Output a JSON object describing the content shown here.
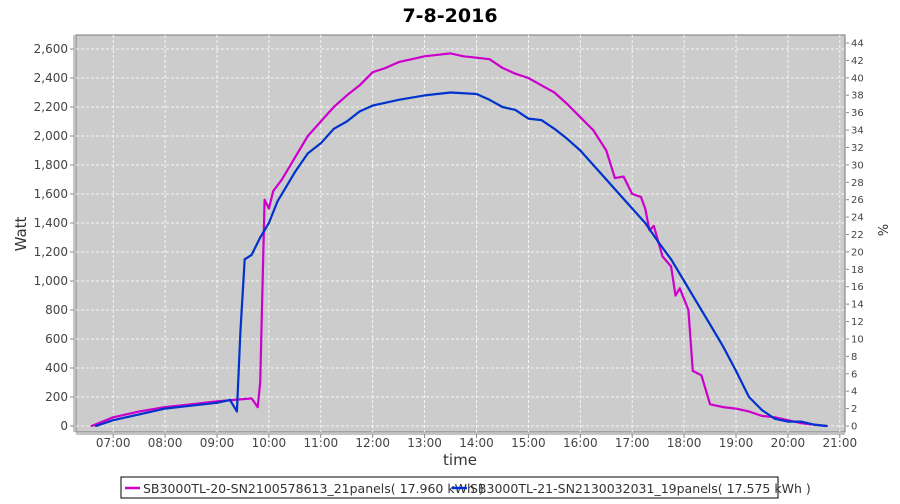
{
  "chart_data": {
    "type": "line",
    "title": "7-8-2016",
    "xlabel": "time",
    "ylabel": "Watt",
    "y2label": "%",
    "xlim": [
      "06:17",
      "21:06"
    ],
    "ylim": [
      0,
      2700
    ],
    "y2lim": [
      0,
      46
    ],
    "grid": true,
    "legend_position": "bottom",
    "x_ticks": [
      "07:00",
      "08:00",
      "09:00",
      "10:00",
      "11:00",
      "12:00",
      "13:00",
      "14:00",
      "15:00",
      "16:00",
      "17:00",
      "18:00",
      "19:00",
      "20:00",
      "21:00"
    ],
    "y_ticks": [
      "0",
      "200",
      "400",
      "600",
      "800",
      "1,000",
      "1,200",
      "1,400",
      "1,600",
      "1,800",
      "2,000",
      "2,200",
      "2,400",
      "2,600"
    ],
    "y2_ticks": [
      "0",
      "2",
      "4",
      "6",
      "8",
      "10",
      "12",
      "14",
      "16",
      "18",
      "20",
      "22",
      "24",
      "26",
      "28",
      "30",
      "32",
      "34",
      "36",
      "38",
      "40",
      "42",
      "44"
    ],
    "plot_background": "#cccccc",
    "series": [
      {
        "name": "SB3000TL-20-SN2100578613_21panels( 17.960 kWh )",
        "color": "#cc00cc",
        "x": [
          "06:35",
          "07:00",
          "07:30",
          "08:00",
          "08:30",
          "09:00",
          "09:20",
          "09:40",
          "09:47",
          "09:50",
          "09:55",
          "10:00",
          "10:05",
          "10:15",
          "10:30",
          "10:45",
          "11:00",
          "11:15",
          "11:30",
          "11:45",
          "12:00",
          "12:15",
          "12:30",
          "12:45",
          "13:00",
          "13:15",
          "13:30",
          "13:45",
          "14:00",
          "14:15",
          "14:30",
          "14:45",
          "15:00",
          "15:15",
          "15:30",
          "15:45",
          "16:00",
          "16:15",
          "16:30",
          "16:40",
          "16:50",
          "17:00",
          "17:10",
          "17:15",
          "17:20",
          "17:25",
          "17:35",
          "17:45",
          "17:50",
          "17:55",
          "18:05",
          "18:10",
          "18:20",
          "18:30",
          "18:45",
          "19:00",
          "19:15",
          "19:30",
          "19:45",
          "20:00",
          "20:15",
          "20:30",
          "20:45"
        ],
        "values": [
          0,
          60,
          100,
          130,
          150,
          170,
          180,
          190,
          130,
          300,
          1560,
          1500,
          1620,
          1700,
          1850,
          2000,
          2100,
          2200,
          2280,
          2350,
          2440,
          2470,
          2510,
          2530,
          2550,
          2560,
          2570,
          2550,
          2540,
          2530,
          2470,
          2430,
          2400,
          2350,
          2300,
          2220,
          2130,
          2040,
          1900,
          1710,
          1720,
          1600,
          1580,
          1500,
          1350,
          1380,
          1170,
          1100,
          900,
          950,
          800,
          380,
          350,
          150,
          130,
          120,
          100,
          70,
          60,
          40,
          20,
          10,
          0
        ]
      },
      {
        "name": "SB3000TL-21-SN2130032031_19panels( 17.575 kWh )",
        "color": "#0033cc",
        "x": [
          "06:40",
          "07:00",
          "07:30",
          "08:00",
          "08:30",
          "09:00",
          "09:15",
          "09:23",
          "09:27",
          "09:32",
          "09:40",
          "09:50",
          "10:00",
          "10:10",
          "10:20",
          "10:30",
          "10:45",
          "11:00",
          "11:15",
          "11:30",
          "11:45",
          "12:00",
          "12:30",
          "13:00",
          "13:30",
          "14:00",
          "14:15",
          "14:30",
          "14:45",
          "15:00",
          "15:15",
          "15:30",
          "15:45",
          "16:00",
          "16:15",
          "16:30",
          "16:45",
          "17:00",
          "17:15",
          "17:30",
          "17:45",
          "18:00",
          "18:15",
          "18:30",
          "18:45",
          "19:00",
          "19:15",
          "19:30",
          "19:45",
          "20:00",
          "20:15",
          "20:30",
          "20:45"
        ],
        "values": [
          0,
          40,
          80,
          120,
          140,
          160,
          180,
          100,
          650,
          1150,
          1180,
          1300,
          1400,
          1550,
          1650,
          1750,
          1880,
          1950,
          2050,
          2100,
          2170,
          2210,
          2250,
          2280,
          2300,
          2290,
          2250,
          2200,
          2180,
          2120,
          2110,
          2050,
          1980,
          1900,
          1800,
          1700,
          1600,
          1500,
          1400,
          1270,
          1150,
          1000,
          850,
          700,
          550,
          380,
          200,
          110,
          50,
          30,
          30,
          10,
          0
        ]
      }
    ]
  }
}
